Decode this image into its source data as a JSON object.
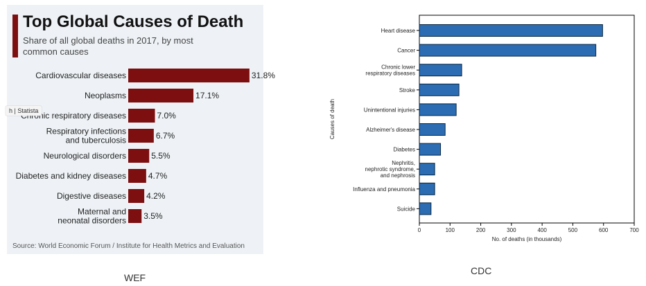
{
  "captions": {
    "left": "WEF",
    "right": "CDC"
  },
  "colors": {
    "wef_bar": "#7d0f10",
    "cdc_bar": "#2b6cb3",
    "cdc_bar_stroke": "#0b2740"
  },
  "chart_data": [
    {
      "type": "bar",
      "orientation": "horizontal",
      "title": "Top Global Causes of Death",
      "subtitle": "Share of all global deaths in 2017, by most common causes",
      "source": "Source: World Economic Forum / Institute for Health Metrics and Evaluation",
      "watermark": "h | Statista",
      "categories": [
        "Cardiovascular diseases",
        "Neoplasms",
        "Chronic respiratory diseases",
        "Respiratory infections and tuberculosis",
        "Neurological disorders",
        "Diabetes and kidney diseases",
        "Digestive diseases",
        "Maternal and neonatal disorders"
      ],
      "category_lines": [
        [
          "Cardiovascular diseases"
        ],
        [
          "Neoplasms"
        ],
        [
          "Chronic respiratory diseases"
        ],
        [
          "Respiratory infections",
          "and tuberculosis"
        ],
        [
          "Neurological disorders"
        ],
        [
          "Diabetes and kidney diseases"
        ],
        [
          "Digestive diseases"
        ],
        [
          "Maternal and",
          "neonatal disorders"
        ]
      ],
      "values": [
        31.8,
        17.1,
        7.0,
        6.7,
        5.5,
        4.7,
        4.2,
        3.5
      ],
      "value_labels": [
        "31.8%",
        "17.1%",
        "7.0%",
        "6.7%",
        "5.5%",
        "4.7%",
        "4.2%",
        "3.5%"
      ],
      "grid": false,
      "legend": "none"
    },
    {
      "type": "bar",
      "orientation": "horizontal",
      "xlabel": "No. of deaths (in thousands)",
      "ylabel": "Causes of death",
      "xlim": [
        0,
        700
      ],
      "xticks": [
        0,
        100,
        200,
        300,
        400,
        500,
        600,
        700
      ],
      "categories": [
        "Heart disease",
        "Cancer",
        "Chronic lower respiratory diseases",
        "Stroke",
        "Unintentional injuries",
        "Alzheimer's disease",
        "Diabetes",
        "Nephritis, nephrotic syndrome, and nephrosis",
        "Influenza and pneumonia",
        "Suicide"
      ],
      "category_lines": [
        [
          "Heart disease"
        ],
        [
          "Cancer"
        ],
        [
          "Chronic lower",
          "respiratory diseases"
        ],
        [
          "Stroke"
        ],
        [
          "Unintentional injuries"
        ],
        [
          "Alzheimer's disease"
        ],
        [
          "Diabetes"
        ],
        [
          "Nephritis,",
          "nephrotic syndrome,",
          "and nephrosis"
        ],
        [
          "Influenza and pneumonia"
        ],
        [
          "Suicide"
        ]
      ],
      "values": [
        597,
        575,
        138,
        129,
        120,
        84,
        69,
        50,
        50,
        38
      ],
      "grid": false,
      "legend": "none"
    }
  ]
}
